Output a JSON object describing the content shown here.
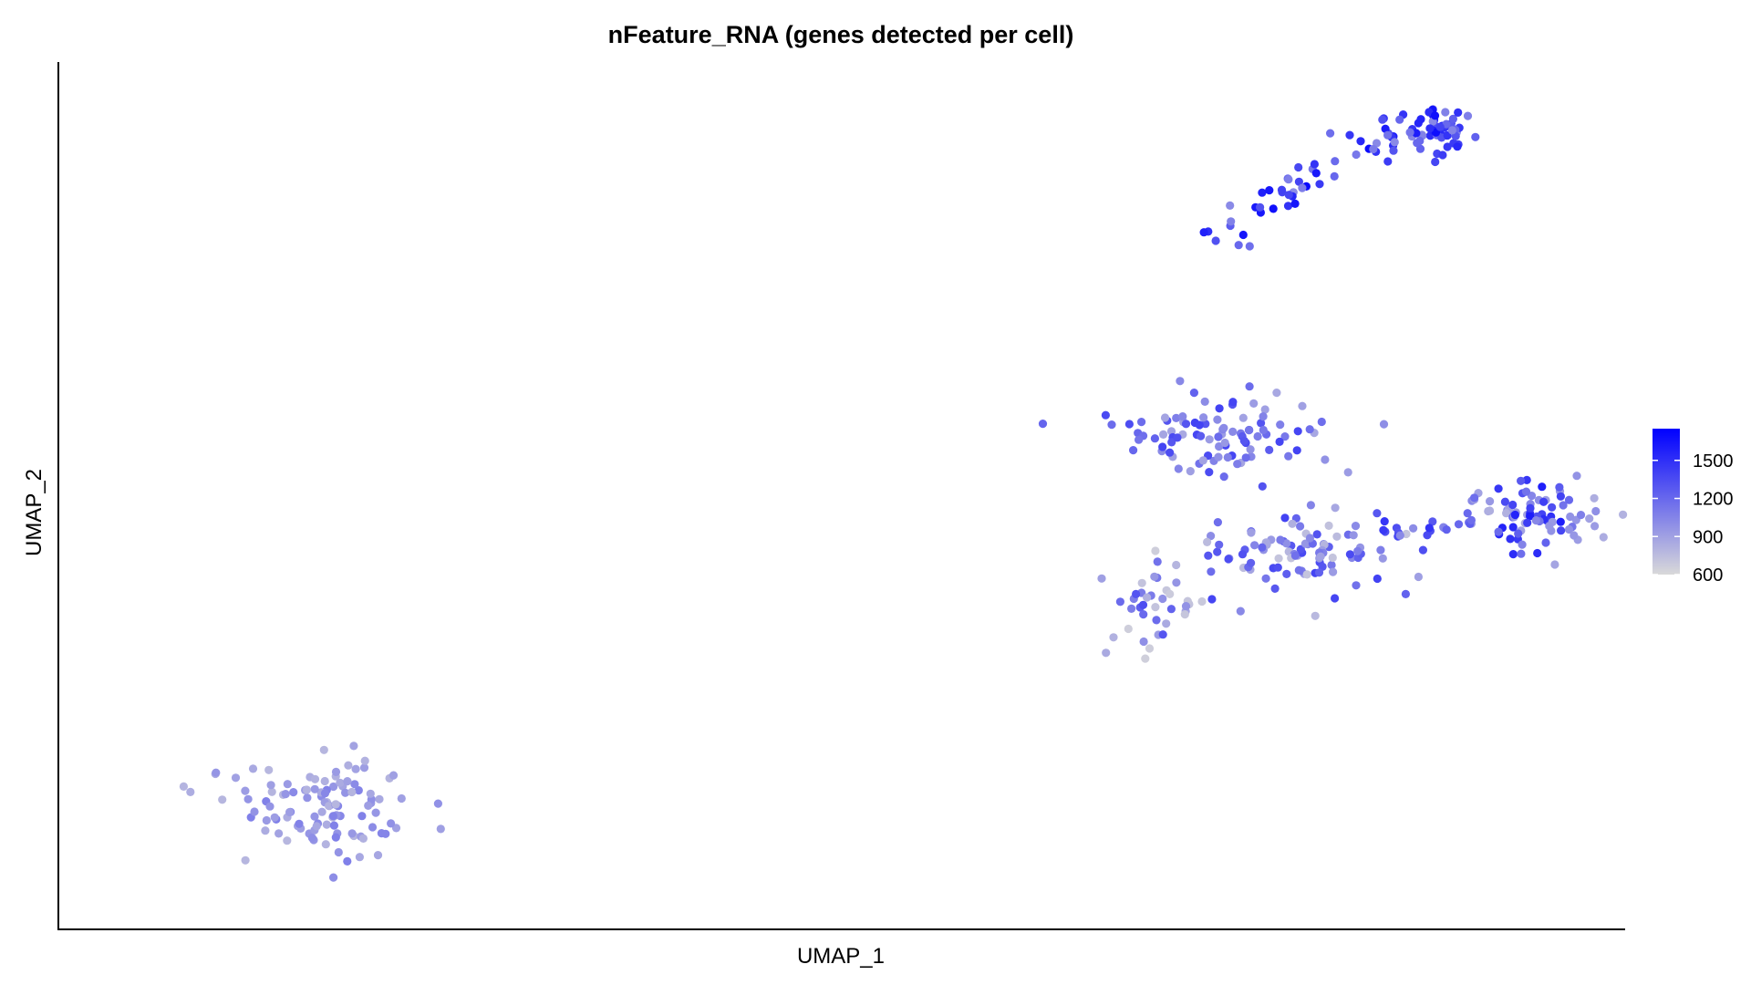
{
  "chart_data": {
    "type": "scatter",
    "title": "nFeature_RNA (genes detected per cell)",
    "xlabel": "UMAP_1",
    "ylabel": "UMAP_2",
    "xlim": [
      0,
      1000
    ],
    "ylim": [
      0,
      1000
    ],
    "grid": false,
    "axis_ticks_shown": false,
    "color_scale": {
      "variable": "nFeature_RNA",
      "low_color": "#d9d9d9",
      "high_color": "#0000ff",
      "range": [
        600,
        1750
      ],
      "ticks": [
        600,
        900,
        1200,
        1500
      ],
      "tick_labels": [
        "600",
        "900",
        "1200",
        "1500"
      ],
      "legend_placement": "right"
    },
    "clusters": [
      {
        "label": "lower-left cluster",
        "center": [
          160,
          140
        ],
        "spread": [
          60,
          55
        ],
        "count": 110,
        "value_range": [
          780,
          1080
        ]
      },
      {
        "label": "upper-right arc",
        "arc_start": [
          732,
          792
        ],
        "arc_peak": [
          860,
          920
        ],
        "arc_end": [
          882,
          900
        ],
        "count": 110,
        "value_range": [
          1000,
          1700
        ]
      },
      {
        "label": "upper middle cluster",
        "center": [
          735,
          570
        ],
        "spread": [
          70,
          45
        ],
        "count": 95,
        "value_range": [
          850,
          1400
        ]
      },
      {
        "label": "central band",
        "center": [
          790,
          435
        ],
        "spread": [
          70,
          45
        ],
        "count": 95,
        "value_range": [
          700,
          1400
        ]
      },
      {
        "label": "lower left lobe",
        "center": [
          700,
          380
        ],
        "spread": [
          35,
          60
        ],
        "count": 40,
        "value_range": [
          620,
          1350
        ]
      },
      {
        "label": "right cluster",
        "center": [
          940,
          480
        ],
        "spread": [
          50,
          45
        ],
        "count": 85,
        "value_range": [
          800,
          1600
        ]
      },
      {
        "label": "bridge",
        "center": [
          870,
          460
        ],
        "spread": [
          30,
          12
        ],
        "count": 15,
        "value_range": [
          1000,
          1500
        ]
      }
    ]
  }
}
